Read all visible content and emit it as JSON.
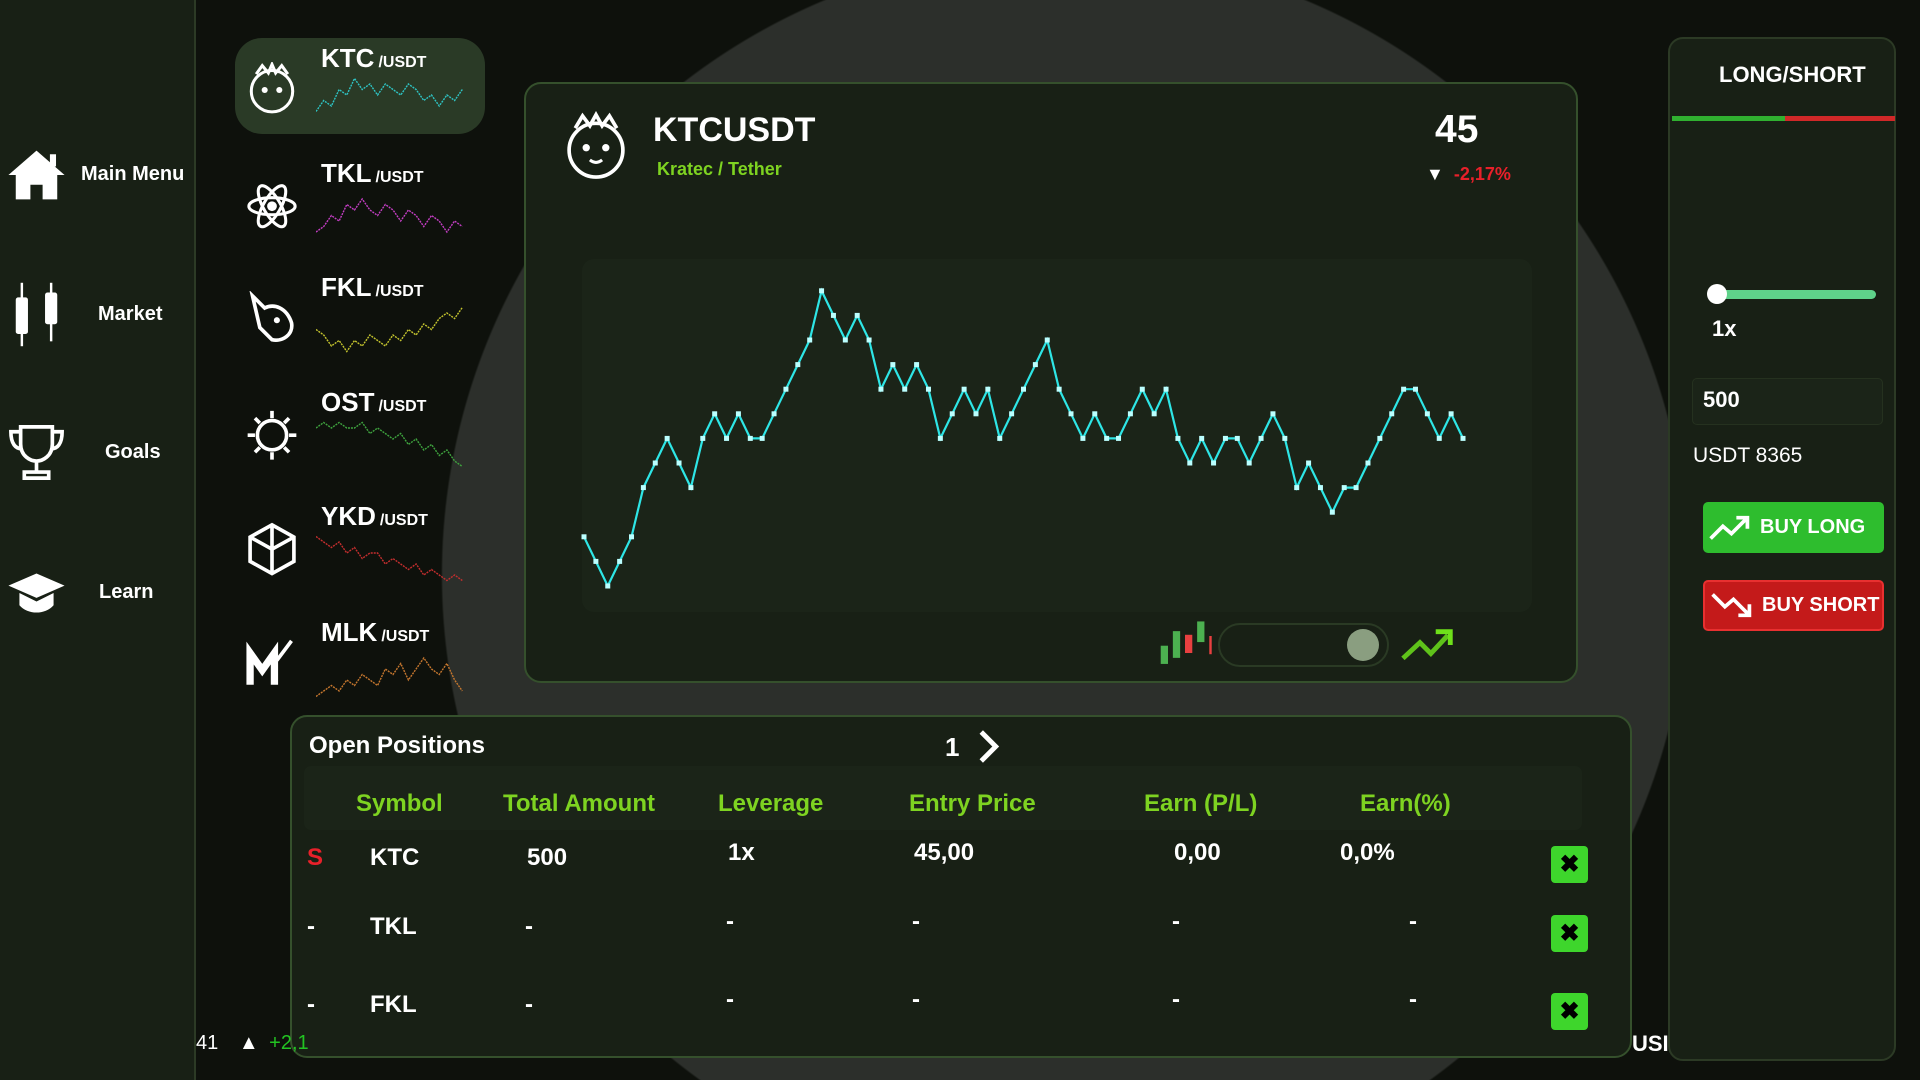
{
  "sidebar": {
    "items": [
      {
        "label": "Main Menu",
        "icon": "home-icon"
      },
      {
        "label": "Market",
        "icon": "candlestick-icon"
      },
      {
        "label": "Goals",
        "icon": "trophy-icon"
      },
      {
        "label": "Learn",
        "icon": "graduation-cap-icon"
      }
    ]
  },
  "coins": [
    {
      "symbol": "KTC",
      "quote": "/USDT",
      "color": "#2ec4c4",
      "selected": true,
      "spark": [
        3,
        5,
        4,
        7,
        6,
        9,
        7,
        8,
        6,
        8,
        7,
        6,
        8,
        7,
        5,
        6,
        4,
        6,
        5,
        7
      ]
    },
    {
      "symbol": "TKL",
      "quote": "/USDT",
      "color": "#c43ec4",
      "spark": [
        2,
        3,
        5,
        4,
        7,
        6,
        8,
        6,
        5,
        7,
        6,
        4,
        6,
        5,
        3,
        5,
        4,
        2,
        4,
        3
      ]
    },
    {
      "symbol": "FKL",
      "quote": "/USDT",
      "color": "#c4c42e",
      "spark": [
        5,
        4,
        2,
        3,
        1,
        3,
        2,
        4,
        3,
        2,
        4,
        3,
        5,
        4,
        6,
        5,
        7,
        8,
        7,
        9
      ]
    },
    {
      "symbol": "OST",
      "quote": "/USDT",
      "color": "#3ea33e",
      "spark": [
        8,
        9,
        8,
        9,
        8,
        8,
        9,
        7,
        8,
        7,
        6,
        7,
        5,
        6,
        4,
        5,
        3,
        4,
        2,
        1
      ]
    },
    {
      "symbol": "YKD",
      "quote": "/USDT",
      "color": "#c42e2e",
      "spark": [
        9,
        8,
        7,
        8,
        6,
        7,
        5,
        6,
        6,
        4,
        5,
        4,
        3,
        4,
        2,
        3,
        2,
        1,
        2,
        1
      ]
    },
    {
      "symbol": "MLK",
      "quote": "/USDT",
      "color": "#c4762e",
      "spark": [
        1,
        2,
        3,
        2,
        4,
        3,
        5,
        4,
        3,
        6,
        5,
        7,
        4,
        6,
        8,
        6,
        5,
        7,
        4,
        2
      ]
    }
  ],
  "main": {
    "pair": "KTCUSDT",
    "name": "Kratec / Tether",
    "price": "45",
    "change_arrow": "▼",
    "change": "-2,17%",
    "change_color": "#e8202a",
    "chart_data": {
      "type": "line",
      "color": "#2ee6e6",
      "values": [
        2,
        1,
        0,
        1,
        2,
        4,
        5,
        6,
        5,
        4,
        6,
        7,
        6,
        7,
        6,
        6,
        7,
        8,
        9,
        10,
        12,
        11,
        10,
        11,
        10,
        8,
        9,
        8,
        9,
        8,
        6,
        7,
        8,
        7,
        8,
        6,
        7,
        8,
        9,
        10,
        8,
        7,
        6,
        7,
        6,
        6,
        7,
        8,
        7,
        8,
        6,
        5,
        6,
        5,
        6,
        6,
        5,
        6,
        7,
        6,
        4,
        5,
        4,
        3,
        4,
        4,
        5,
        6,
        7,
        8,
        8,
        7,
        6,
        7,
        6
      ]
    },
    "chart_mode_toggle": "line"
  },
  "positions": {
    "title": "Open Positions",
    "page": "1",
    "headers": [
      "Symbol",
      "Total Amount",
      "Leverage",
      "Entry Price",
      "Earn (P/L)",
      "Earn(%)"
    ],
    "rows": [
      {
        "side": "S",
        "symbol": "KTC",
        "amount": "500",
        "leverage": "1x",
        "entry": "45,00",
        "pl": "0,00",
        "pct": "0,0%"
      },
      {
        "side": "-",
        "symbol": "TKL",
        "amount": "-",
        "leverage": "-",
        "entry": "-",
        "pl": "-",
        "pct": "-"
      },
      {
        "side": "-",
        "symbol": "FKL",
        "amount": "-",
        "leverage": "-",
        "entry": "-",
        "pl": "-",
        "pct": "-"
      }
    ]
  },
  "right": {
    "title": "LONG/SHORT",
    "leverage": "1x",
    "leverage_fraction": 0,
    "amount": "500",
    "balance": "USDT 8365",
    "buy_long": "BUY LONG",
    "buy_short": "BUY SHORT"
  },
  "ticker": {
    "left_text": "41",
    "left_arrow": "▲",
    "left_change": "+2,1",
    "right_text": "USI"
  }
}
